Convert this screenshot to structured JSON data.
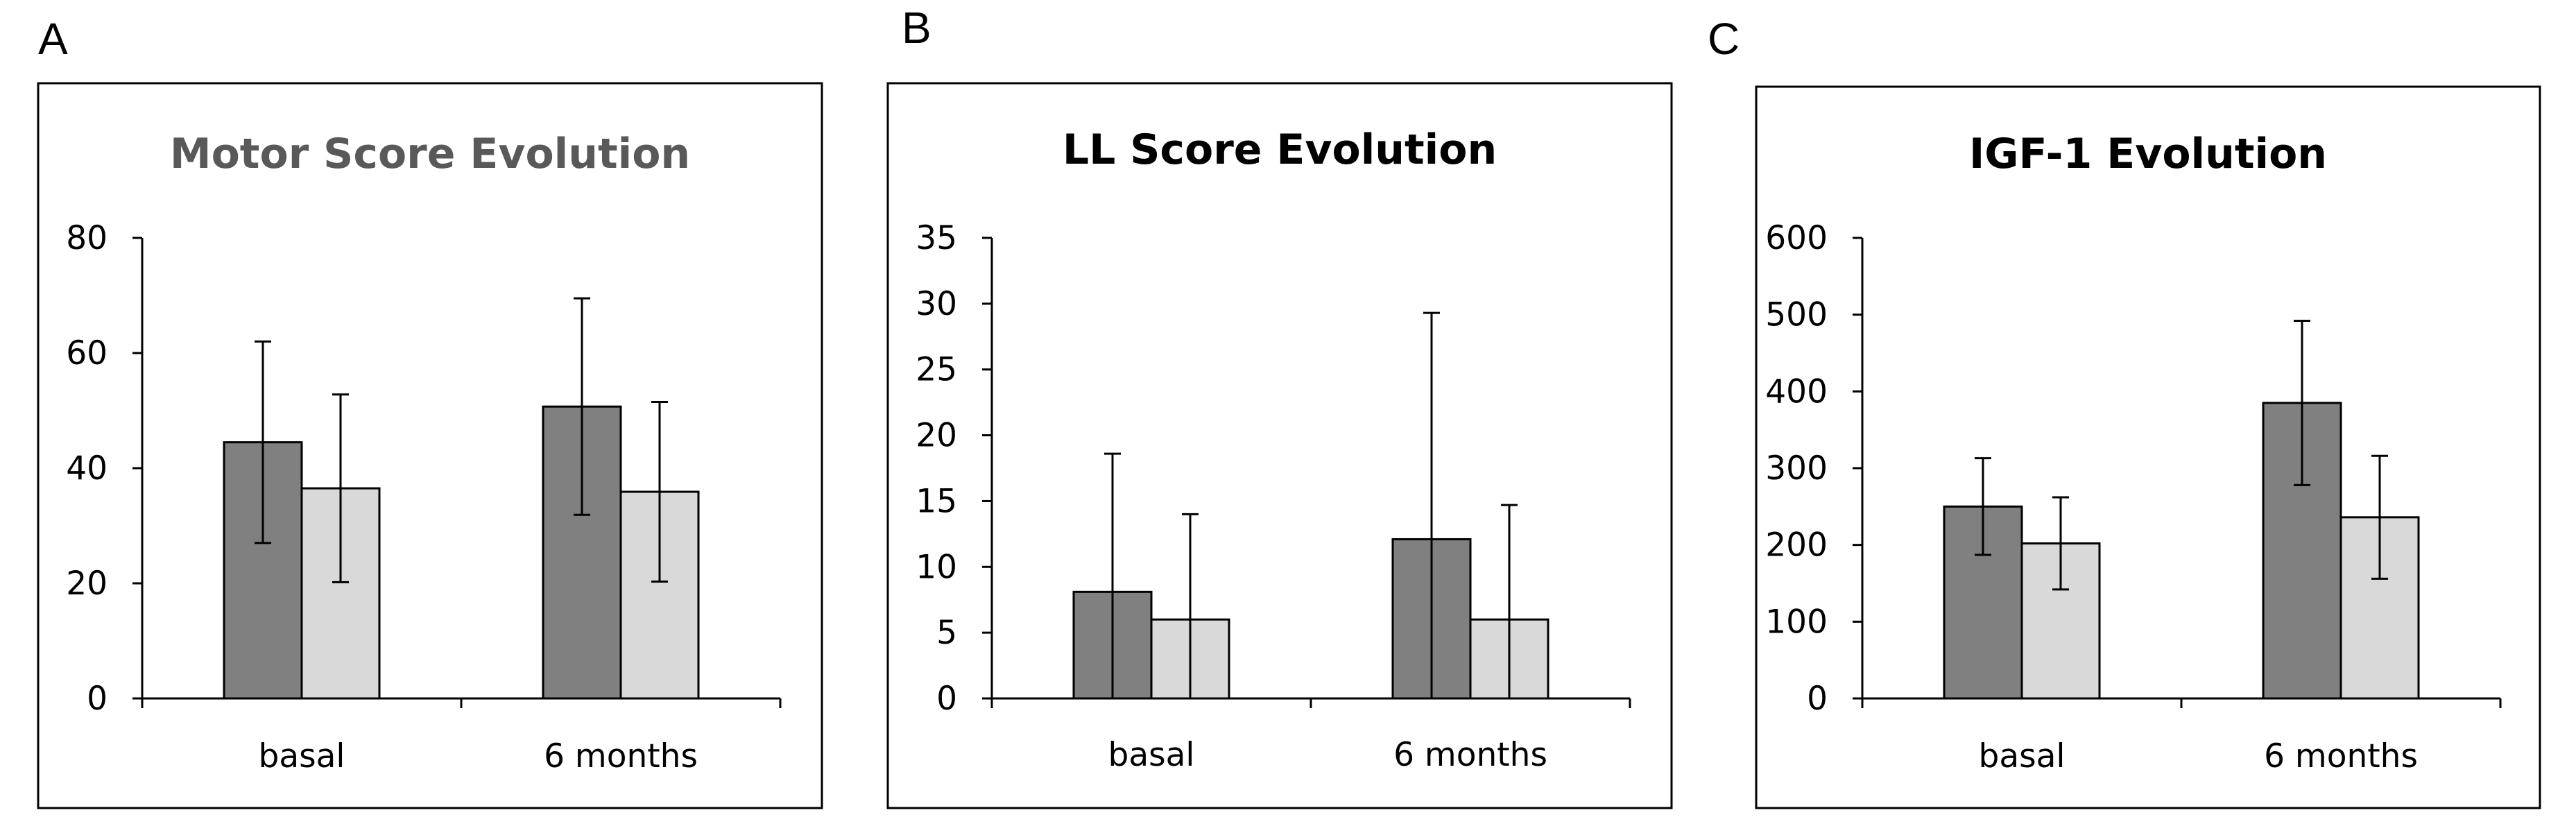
{
  "chart_data": [
    {
      "type": "bar",
      "panel": "A",
      "title": "Motor Score Evolution",
      "categories": [
        "basal",
        "6 months"
      ],
      "ylim": [
        0,
        80
      ],
      "yticks": [
        0,
        20,
        40,
        60,
        80
      ],
      "series": [
        {
          "name": "dark",
          "color": "#808080",
          "values": [
            44.5,
            50.7
          ],
          "errors": [
            17.5,
            18.8
          ]
        },
        {
          "name": "light",
          "color": "#d9d9d9",
          "values": [
            36.5,
            35.9
          ],
          "errors": [
            16.3,
            15.6
          ]
        }
      ],
      "xlabel": "",
      "ylabel": ""
    },
    {
      "type": "bar",
      "panel": "B",
      "title": "LL Score Evolution",
      "categories": [
        "basal",
        "6 months"
      ],
      "ylim": [
        0,
        35
      ],
      "yticks": [
        0,
        5,
        10,
        15,
        20,
        25,
        30,
        35
      ],
      "series": [
        {
          "name": "dark",
          "color": "#808080",
          "values": [
            8.1,
            12.1
          ],
          "errors": [
            10.5,
            17.2
          ]
        },
        {
          "name": "light",
          "color": "#d9d9d9",
          "values": [
            6.0,
            6.0
          ],
          "errors": [
            8.0,
            8.7
          ]
        }
      ],
      "xlabel": "",
      "ylabel": ""
    },
    {
      "type": "bar",
      "panel": "C",
      "title": "IGF-1 Evolution",
      "categories": [
        "basal",
        "6 months"
      ],
      "ylim": [
        0,
        600
      ],
      "yticks": [
        0,
        100,
        200,
        300,
        400,
        500,
        600
      ],
      "series": [
        {
          "name": "dark",
          "color": "#808080",
          "values": [
            250,
            385
          ],
          "errors": [
            63,
            107
          ]
        },
        {
          "name": "light",
          "color": "#d9d9d9",
          "values": [
            202,
            236
          ],
          "errors": [
            60,
            80
          ]
        }
      ],
      "xlabel": "",
      "ylabel": ""
    }
  ]
}
